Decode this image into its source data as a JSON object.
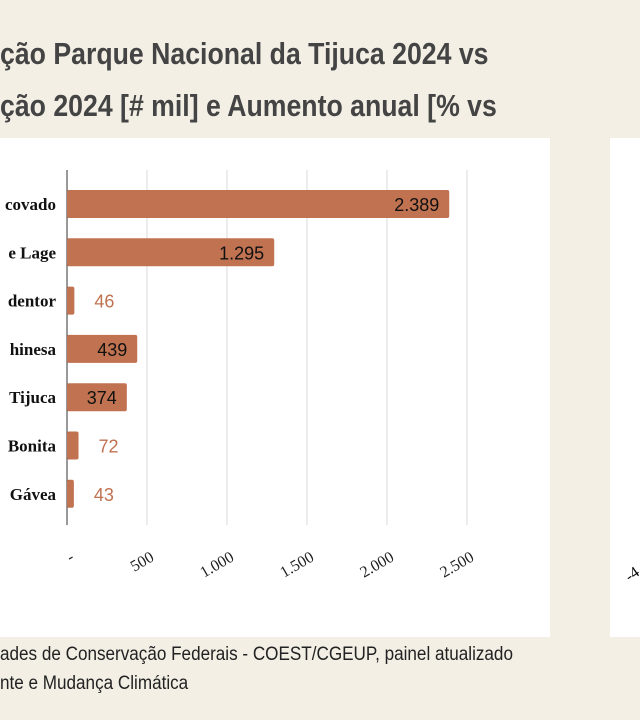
{
  "title": {
    "line1": "ção Parque Nacional da Tijuca 2024 vs",
    "line2": "ção 2024 [# mil] e Aumento anual [% vs"
  },
  "footer": {
    "line1": "ades de Conservação Federais - COEST/CGEUP, painel atualizado",
    "line2": "nte e Mudança Climática"
  },
  "right_panel": {
    "tick": "-4"
  },
  "colors": {
    "bar": "#c07251",
    "outside_label": "#c07251",
    "grid": "#d9d9d9"
  },
  "chart_data": {
    "type": "bar",
    "orientation": "horizontal",
    "categories": [
      "covado",
      "e Lage",
      "dentor",
      "hinesa",
      "Tijuca",
      "Bonita",
      "Gávea"
    ],
    "values": [
      2389,
      1295,
      46,
      439,
      374,
      72,
      43
    ],
    "value_labels": [
      "2.389",
      "1.295",
      "46",
      "439",
      "374",
      "72",
      "43"
    ],
    "xticks": [
      0,
      500,
      1000,
      1500,
      2000,
      2500
    ],
    "xtick_labels": [
      "-",
      "500",
      "1.000",
      "1.500",
      "2.000",
      "2.500"
    ],
    "xlim": [
      0,
      2500
    ],
    "grid": true
  }
}
